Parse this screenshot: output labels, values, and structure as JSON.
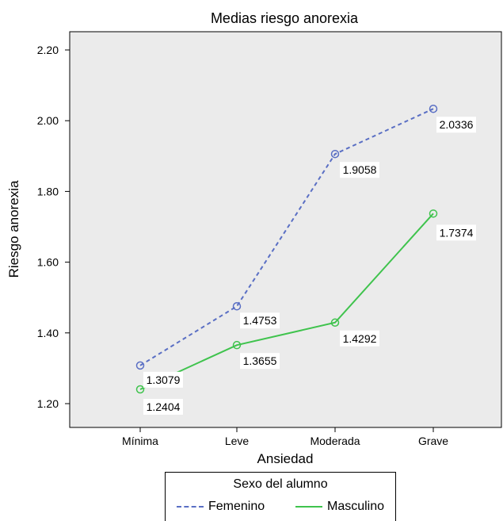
{
  "chart_data": {
    "type": "line",
    "title": "Medias riesgo anorexia",
    "xlabel": "Ansiedad",
    "ylabel": "Riesgo anorexia",
    "categories": [
      "Mínima",
      "Leve",
      "Moderada",
      "Grave"
    ],
    "ylim": [
      1.16,
      2.28
    ],
    "yticks": [
      "1.20",
      "1.40",
      "1.60",
      "1.80",
      "2.00",
      "2.20"
    ],
    "grid": false,
    "series": [
      {
        "name": "Femenino",
        "values": [
          1.3079,
          1.4753,
          1.9058,
          2.0336
        ],
        "labels": [
          "1.3079",
          "1.4753",
          "1.9058",
          "2.0336"
        ],
        "color": "#5a6fc4",
        "style": "dashed"
      },
      {
        "name": "Masculino",
        "values": [
          1.2404,
          1.3655,
          1.4292,
          1.7374
        ],
        "labels": [
          "1.2404",
          "1.3655",
          "1.4292",
          "1.7374"
        ],
        "color": "#3fc34d",
        "style": "solid"
      }
    ],
    "legend": {
      "title": "Sexo del alumno",
      "position": "bottom"
    },
    "plot_background": "#ebebeb"
  }
}
